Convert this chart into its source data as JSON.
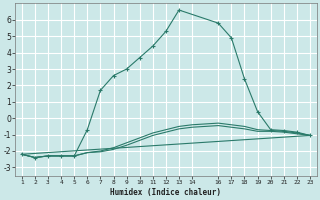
{
  "xlabel": "Humidex (Indice chaleur)",
  "background_color": "#cce8e8",
  "grid_color": "#ffffff",
  "line_color": "#2a7a6a",
  "xlim": [
    0.5,
    23.5
  ],
  "ylim": [
    -3.5,
    7.0
  ],
  "xticks": [
    1,
    2,
    3,
    4,
    5,
    6,
    7,
    8,
    9,
    10,
    11,
    12,
    13,
    14,
    16,
    17,
    18,
    19,
    20,
    21,
    22,
    23
  ],
  "yticks": [
    -3,
    -2,
    -1,
    0,
    1,
    2,
    3,
    4,
    5,
    6
  ],
  "series_main": {
    "x": [
      1,
      2,
      3,
      4,
      5,
      6,
      7,
      8,
      9,
      10,
      11,
      12,
      13,
      16,
      17,
      18,
      19,
      20,
      21,
      22,
      23
    ],
    "y": [
      -2.2,
      -2.4,
      -2.3,
      -2.3,
      -2.3,
      -0.7,
      1.7,
      2.6,
      3.0,
      3.7,
      4.4,
      5.3,
      6.6,
      5.8,
      4.9,
      2.4,
      0.4,
      -0.7,
      -0.75,
      -0.85,
      -1.05
    ]
  },
  "series_flat1": {
    "x": [
      1,
      2,
      3,
      4,
      5,
      6,
      7,
      8,
      9,
      10,
      11,
      12,
      13,
      14,
      16,
      17,
      18,
      19,
      20,
      21,
      22,
      23
    ],
    "y": [
      -2.2,
      -2.4,
      -2.3,
      -2.3,
      -2.3,
      -2.1,
      -2.0,
      -1.8,
      -1.5,
      -1.2,
      -0.9,
      -0.7,
      -0.5,
      -0.4,
      -0.3,
      -0.4,
      -0.5,
      -0.7,
      -0.75,
      -0.8,
      -0.9,
      -1.05
    ]
  },
  "series_flat2": {
    "x": [
      1,
      2,
      3,
      4,
      5,
      6,
      7,
      8,
      9,
      10,
      11,
      12,
      13,
      14,
      16,
      17,
      18,
      19,
      20,
      21,
      22,
      23
    ],
    "y": [
      -2.2,
      -2.4,
      -2.3,
      -2.3,
      -2.3,
      -2.1,
      -2.05,
      -1.9,
      -1.65,
      -1.35,
      -1.05,
      -0.85,
      -0.65,
      -0.55,
      -0.45,
      -0.55,
      -0.65,
      -0.8,
      -0.8,
      -0.85,
      -0.95,
      -1.05
    ]
  },
  "series_line": {
    "x": [
      1,
      23
    ],
    "y": [
      -2.2,
      -1.05
    ]
  }
}
